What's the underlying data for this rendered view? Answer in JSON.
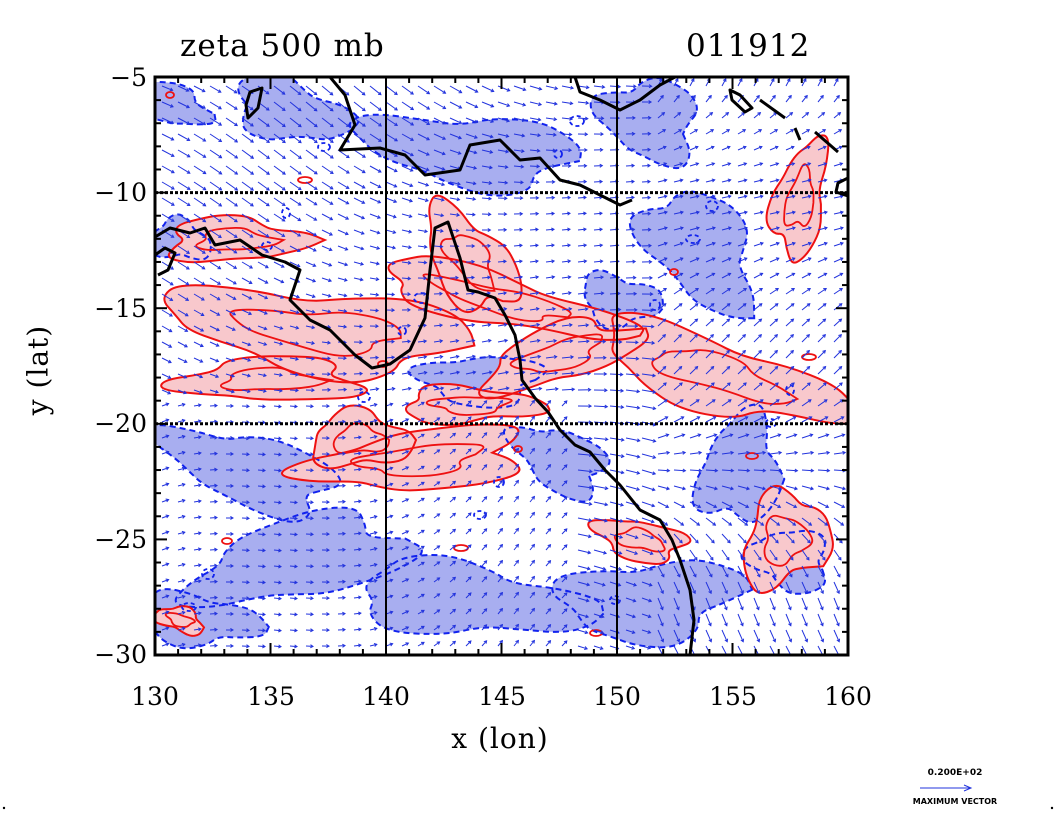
{
  "title": "zeta 500 mb",
  "timestamp": "011912",
  "xlabel": "x (lon)",
  "ylabel": "y (lat)",
  "x_ticks": [
    "130",
    "135",
    "140",
    "145",
    "150",
    "155",
    "160"
  ],
  "y_ticks": [
    "−5",
    "−10",
    "−15",
    "−20",
    "−25",
    "−30"
  ],
  "x_range": [
    130,
    160
  ],
  "y_range": [
    -30,
    -5
  ],
  "grid_lines": {
    "lon": [
      140,
      150
    ],
    "lat": [
      -10,
      -20
    ]
  },
  "legend": {
    "value": "0.200E+02",
    "label": "MAXIMUM VECTOR"
  },
  "colors": {
    "positive_fill": "#f8c8cc",
    "positive_contour": "#ee1111",
    "negative_fill": "#a8aef0",
    "negative_contour": "#1122ee",
    "vectors": "#2233dd",
    "coastline": "#000000"
  },
  "icons": [
    "wind-vector-arrow-icon",
    "maximum-vector-arrow-icon"
  ]
}
